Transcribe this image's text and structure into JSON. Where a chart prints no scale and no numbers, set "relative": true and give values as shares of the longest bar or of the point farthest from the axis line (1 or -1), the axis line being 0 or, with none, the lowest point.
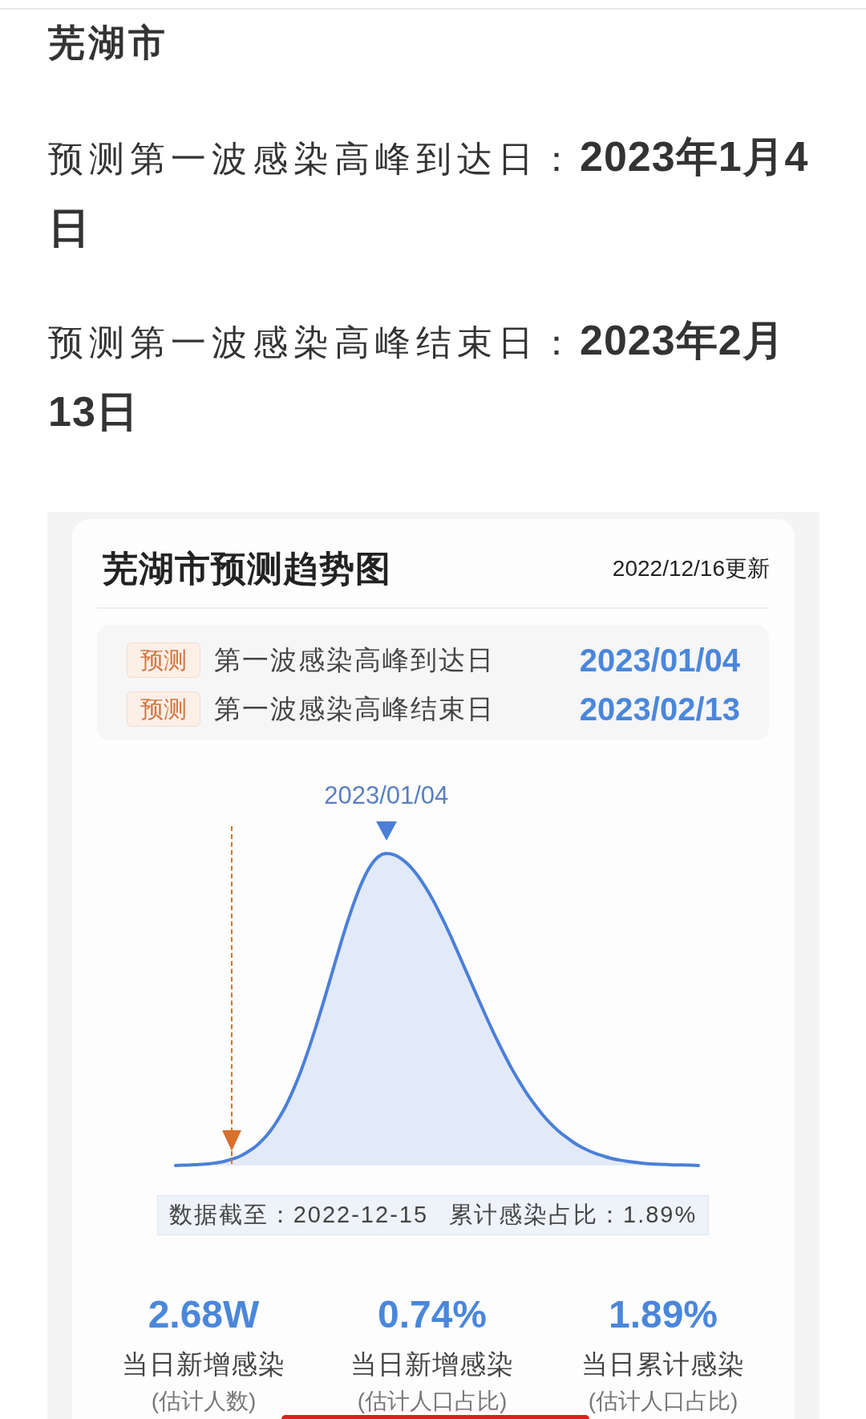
{
  "chart_data": {
    "type": "area",
    "title": "芜湖市预测趋势图",
    "subtitle": "2022/12/16更新",
    "categories": [
      null,
      null,
      null,
      null,
      null,
      null,
      null,
      null,
      null,
      null,
      null,
      null,
      null,
      null,
      null,
      null,
      null,
      null,
      null,
      null,
      null,
      null,
      null,
      null,
      null,
      null,
      null,
      null,
      null,
      null,
      null,
      null,
      null,
      null,
      null,
      null,
      null,
      null,
      null,
      null,
      null,
      null,
      null,
      null,
      null,
      null,
      null,
      null,
      null,
      null,
      null,
      null,
      null,
      null,
      null,
      null,
      null,
      null,
      null,
      null,
      null,
      null,
      null,
      null,
      null,
      null,
      null,
      null
    ],
    "values": [
      0,
      0.001,
      0.002,
      0.003,
      0.005,
      0.008,
      0.012,
      0.019,
      0.027,
      0.04,
      0.056,
      0.078,
      0.106,
      0.142,
      0.185,
      0.238,
      0.299,
      0.369,
      0.446,
      0.528,
      0.613,
      0.698,
      0.779,
      0.852,
      0.914,
      0.961,
      0.99,
      1,
      0.996,
      0.982,
      0.96,
      0.93,
      0.893,
      0.85,
      0.801,
      0.749,
      0.693,
      0.636,
      0.579,
      0.522,
      0.466,
      0.412,
      0.362,
      0.314,
      0.271,
      0.231,
      0.196,
      0.164,
      0.136,
      0.112,
      0.092,
      0.074,
      0.059,
      0.047,
      0.037,
      0.029,
      0.022,
      0.017,
      0.013,
      0.01,
      0.007,
      0.005,
      0.004,
      0.003,
      0.002,
      0.002,
      0.001,
      0
    ],
    "color": "#4b7fd8",
    "relative": true,
    "annotations": [
      "芜湖市",
      "预测第一波感染高峰到达日：",
      "2023年1月4日",
      "预测第一波感染高峰结束日：",
      "2023年2月13日",
      "预测",
      "第一波感染高峰到达日",
      "2023/01/04",
      "预测",
      "第一波感染高峰结束日",
      "2023/02/13",
      {
        "text": "2023/01/04",
        "y": 1
      },
      "数据截至：2022-12-15",
      "累计感染占比：1.89%",
      "2.68W",
      "当日新增感染",
      "(估计人数)",
      "0.74%",
      "当日新增感染",
      "(估计人口占比)",
      "1.89%",
      "当日累计感染",
      "(估计人口占比)"
    ]
  }
}
